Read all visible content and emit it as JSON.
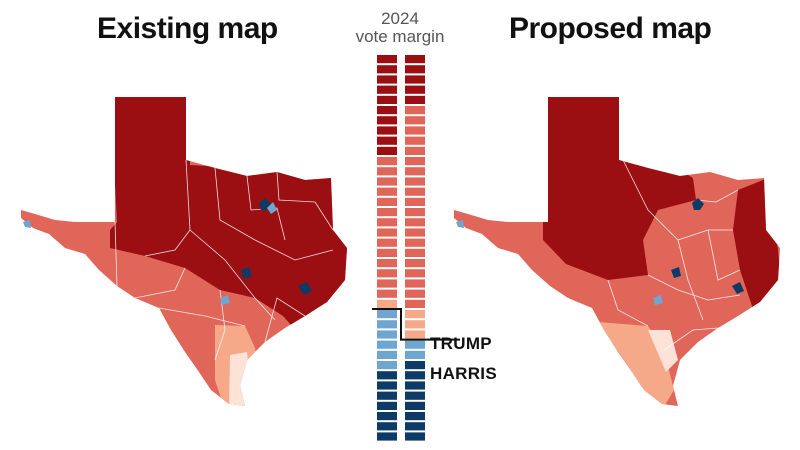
{
  "titles": {
    "existing": "Existing map",
    "proposed": "Proposed map"
  },
  "legend": {
    "year": "2024",
    "subtitle": "vote margin",
    "trump_label": "TRUMP",
    "harris_label": "HARRIS"
  },
  "colors": {
    "trump_strong": "#9b0f13",
    "trump_medium": "#e0665a",
    "trump_lean": "#f6a988",
    "trump_slight": "#fde2d8",
    "harris_lean": "#6fa6d0",
    "harris_strong": "#0d3a66"
  },
  "columns": {
    "existing": {
      "name": "Existing map",
      "districts": [
        "trump_strong",
        "trump_strong",
        "trump_strong",
        "trump_strong",
        "trump_strong",
        "trump_strong",
        "trump_strong",
        "trump_strong",
        "trump_strong",
        "trump_strong",
        "trump_medium",
        "trump_medium",
        "trump_medium",
        "trump_medium",
        "trump_medium",
        "trump_medium",
        "trump_medium",
        "trump_medium",
        "trump_medium",
        "trump_medium",
        "trump_medium",
        "trump_medium",
        "trump_medium",
        "trump_medium",
        "trump_lean",
        "harris_lean",
        "harris_lean",
        "harris_lean",
        "harris_lean",
        "harris_lean",
        "harris_lean",
        "harris_strong",
        "harris_strong",
        "harris_strong",
        "harris_strong",
        "harris_strong",
        "harris_strong",
        "harris_strong"
      ]
    },
    "proposed": {
      "name": "Proposed map",
      "districts": [
        "trump_strong",
        "trump_strong",
        "trump_strong",
        "trump_strong",
        "trump_strong",
        "trump_medium",
        "trump_medium",
        "trump_medium",
        "trump_medium",
        "trump_medium",
        "trump_medium",
        "trump_medium",
        "trump_medium",
        "trump_medium",
        "trump_medium",
        "trump_medium",
        "trump_medium",
        "trump_medium",
        "trump_medium",
        "trump_medium",
        "trump_medium",
        "trump_medium",
        "trump_medium",
        "trump_medium",
        "trump_medium",
        "trump_lean",
        "trump_lean",
        "trump_lean",
        "harris_lean",
        "harris_lean",
        "harris_strong",
        "harris_strong",
        "harris_strong",
        "harris_strong",
        "harris_strong",
        "harris_strong",
        "harris_strong",
        "harris_strong"
      ]
    }
  }
}
